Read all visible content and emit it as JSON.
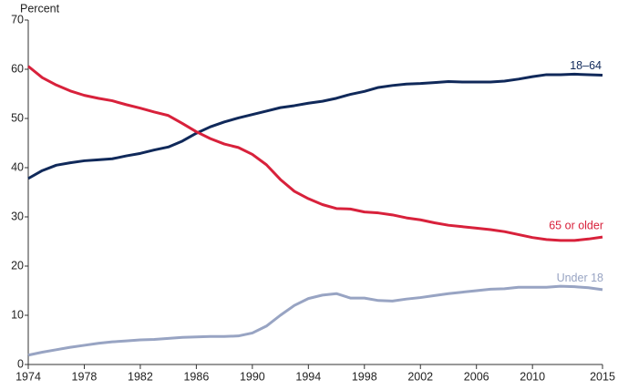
{
  "chart_data": {
    "type": "line",
    "y_label": "Percent",
    "x": [
      1974,
      1975,
      1976,
      1977,
      1978,
      1979,
      1980,
      1981,
      1982,
      1983,
      1984,
      1985,
      1986,
      1987,
      1988,
      1989,
      1990,
      1991,
      1992,
      1993,
      1994,
      1995,
      1996,
      1997,
      1998,
      1999,
      2000,
      2001,
      2002,
      2003,
      2004,
      2005,
      2006,
      2007,
      2008,
      2009,
      2010,
      2011,
      2012,
      2013,
      2014,
      2015
    ],
    "series": [
      {
        "name": "18–64",
        "color": "#10295a",
        "values": [
          37.8,
          39.4,
          40.5,
          41.0,
          41.4,
          41.6,
          41.8,
          42.4,
          42.9,
          43.6,
          44.2,
          45.4,
          47.0,
          48.3,
          49.3,
          50.1,
          50.8,
          51.5,
          52.2,
          52.6,
          53.1,
          53.5,
          54.1,
          54.9,
          55.5,
          56.3,
          56.7,
          57.0,
          57.1,
          57.3,
          57.5,
          57.4,
          57.4,
          57.4,
          57.6,
          58.0,
          58.5,
          58.9,
          58.9,
          59.0,
          58.9,
          58.8
        ]
      },
      {
        "name": "65 or older",
        "color": "#d8213b",
        "values": [
          60.6,
          58.3,
          56.8,
          55.6,
          54.7,
          54.1,
          53.6,
          52.8,
          52.1,
          51.3,
          50.6,
          49.0,
          47.3,
          45.9,
          44.8,
          44.1,
          42.7,
          40.6,
          37.6,
          35.2,
          33.7,
          32.5,
          31.7,
          31.6,
          31.0,
          30.8,
          30.4,
          29.8,
          29.4,
          28.8,
          28.3,
          28.0,
          27.7,
          27.4,
          27.0,
          26.4,
          25.8,
          25.4,
          25.2,
          25.2,
          25.5,
          25.9
        ]
      },
      {
        "name": "Under 18",
        "color": "#98a4c3",
        "values": [
          1.9,
          2.5,
          3.0,
          3.5,
          3.9,
          4.3,
          4.6,
          4.8,
          5.0,
          5.1,
          5.3,
          5.5,
          5.6,
          5.7,
          5.7,
          5.8,
          6.4,
          7.8,
          10.0,
          12.0,
          13.4,
          14.1,
          14.4,
          13.5,
          13.5,
          13.0,
          12.9,
          13.3,
          13.6,
          14.0,
          14.4,
          14.7,
          15.0,
          15.3,
          15.4,
          15.7,
          15.7,
          15.7,
          15.9,
          15.8,
          15.6,
          15.2
        ]
      }
    ],
    "xlim": [
      1974,
      2015
    ],
    "xticks": [
      1974,
      1978,
      1982,
      1986,
      1990,
      1994,
      1998,
      2002,
      2006,
      2010,
      2015
    ],
    "ylim": [
      0,
      70
    ],
    "yticks": [
      0,
      10,
      20,
      30,
      40,
      50,
      60,
      70
    ],
    "grid": false
  }
}
